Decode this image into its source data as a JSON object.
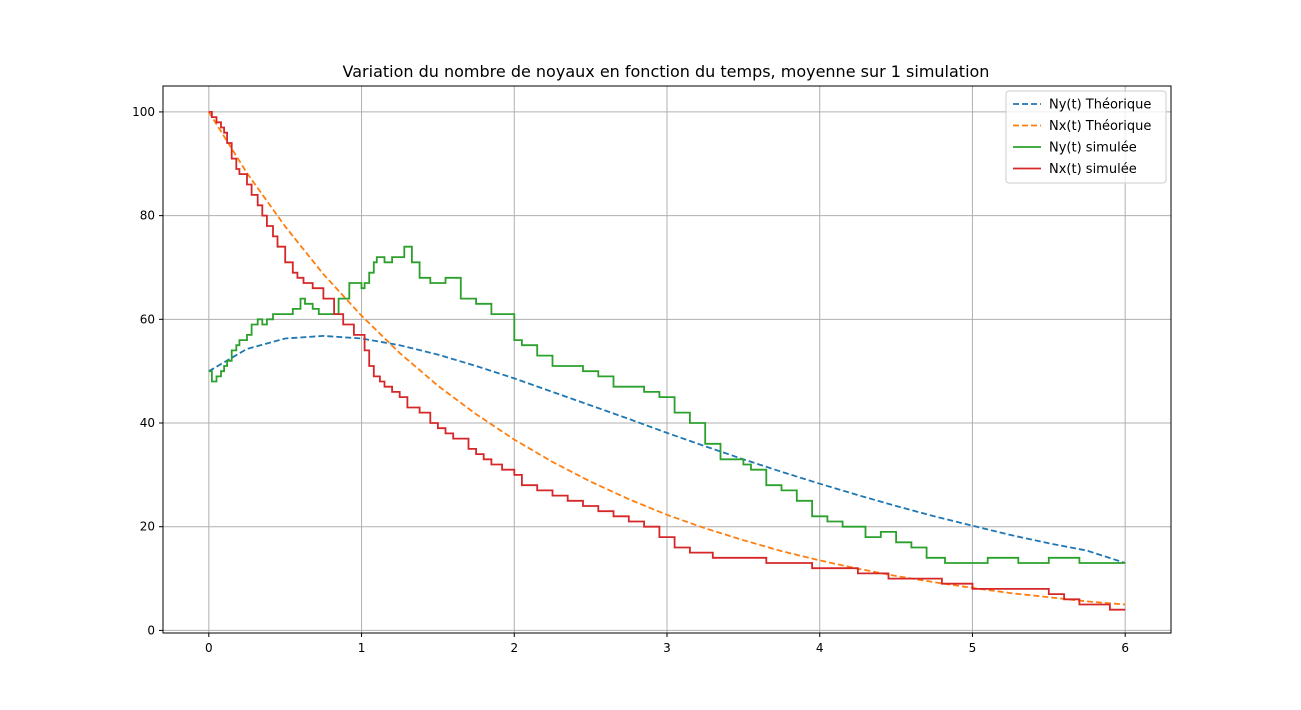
{
  "chart_data": {
    "type": "line",
    "title": "Variation du nombre de noyaux en fonction du temps, moyenne sur 1 simulation",
    "xlabel": "",
    "ylabel": "",
    "xlim": [
      -0.3,
      6.3
    ],
    "ylim": [
      -0.5,
      105
    ],
    "x_ticks": [
      "0",
      "1",
      "2",
      "3",
      "4",
      "5",
      "6"
    ],
    "y_ticks": [
      "0",
      "20",
      "40",
      "60",
      "80",
      "100"
    ],
    "grid": true,
    "legend_position": "top-right",
    "series": [
      {
        "name": "Ny(t) Théorique",
        "style": "dashed",
        "color": "#1f77b4",
        "x": [
          0,
          0.25,
          0.5,
          0.75,
          1.0,
          1.25,
          1.5,
          1.75,
          2.0,
          2.25,
          2.5,
          2.75,
          3.0,
          3.25,
          3.5,
          3.75,
          4.0,
          4.25,
          4.5,
          4.75,
          5.0,
          5.25,
          5.5,
          5.75,
          6.0
        ],
        "y": [
          50,
          54.3,
          56.3,
          56.8,
          56.3,
          55.0,
          53.2,
          51.0,
          48.6,
          46.0,
          43.4,
          40.8,
          38.1,
          35.5,
          33.0,
          30.6,
          28.3,
          26.1,
          24.0,
          22.0,
          20.2,
          18.4,
          16.8,
          15.4,
          13.0
        ]
      },
      {
        "name": "Nx(t) Théorique",
        "style": "dashed",
        "color": "#ff7f0e",
        "x": [
          0,
          0.25,
          0.5,
          0.75,
          1.0,
          1.25,
          1.5,
          1.75,
          2.0,
          2.25,
          2.5,
          2.75,
          3.0,
          3.25,
          3.5,
          3.75,
          4.0,
          4.25,
          4.5,
          4.75,
          5.0,
          5.25,
          5.5,
          5.75,
          6.0
        ],
        "y": [
          100,
          88.2,
          77.9,
          68.7,
          60.7,
          53.5,
          47.2,
          41.7,
          36.8,
          32.5,
          28.7,
          25.3,
          22.3,
          19.7,
          17.4,
          15.3,
          13.5,
          11.9,
          10.5,
          9.3,
          8.2,
          7.2,
          6.4,
          5.6,
          5.0
        ]
      },
      {
        "name": "Ny(t) simulée",
        "style": "step",
        "color": "#2ca02c",
        "x": [
          0,
          0.02,
          0.05,
          0.08,
          0.1,
          0.12,
          0.15,
          0.18,
          0.2,
          0.25,
          0.28,
          0.32,
          0.35,
          0.38,
          0.4,
          0.42,
          0.45,
          0.5,
          0.55,
          0.6,
          0.63,
          0.68,
          0.72,
          0.78,
          0.85,
          0.92,
          1.0,
          1.02,
          1.05,
          1.08,
          1.1,
          1.15,
          1.2,
          1.28,
          1.33,
          1.38,
          1.45,
          1.55,
          1.65,
          1.75,
          1.85,
          1.95,
          2.0,
          2.05,
          2.15,
          2.25,
          2.35,
          2.45,
          2.55,
          2.65,
          2.75,
          2.85,
          2.95,
          3.05,
          3.15,
          3.25,
          3.35,
          3.5,
          3.55,
          3.65,
          3.75,
          3.85,
          3.95,
          4.05,
          4.15,
          4.3,
          4.4,
          4.5,
          4.6,
          4.7,
          4.82,
          5.1,
          5.3,
          5.5,
          5.7,
          5.8,
          5.9,
          6.0
        ],
        "y": [
          50,
          48,
          49,
          50,
          51,
          52,
          54,
          55,
          56,
          57,
          59,
          60,
          59,
          60,
          60,
          61,
          61,
          61,
          62,
          64,
          63,
          62,
          61,
          61,
          64,
          67,
          66,
          67,
          69,
          71,
          72,
          71,
          72,
          74,
          71,
          68,
          67,
          68,
          64,
          63,
          61,
          61,
          56,
          55,
          53,
          51,
          51,
          50,
          49,
          47,
          47,
          46,
          45,
          42,
          40,
          36,
          33,
          32,
          31,
          28,
          27,
          25,
          22,
          21,
          20,
          18,
          19,
          17,
          16,
          14,
          13,
          14,
          13,
          14,
          13,
          13,
          13,
          13
        ]
      },
      {
        "name": "Nx(t) simulée",
        "style": "step",
        "color": "#d62728",
        "x": [
          0,
          0.02,
          0.05,
          0.08,
          0.1,
          0.12,
          0.15,
          0.18,
          0.2,
          0.25,
          0.28,
          0.32,
          0.35,
          0.38,
          0.42,
          0.45,
          0.5,
          0.55,
          0.58,
          0.62,
          0.68,
          0.75,
          0.82,
          0.88,
          0.95,
          1.02,
          1.05,
          1.08,
          1.12,
          1.15,
          1.2,
          1.25,
          1.3,
          1.38,
          1.45,
          1.5,
          1.55,
          1.6,
          1.7,
          1.75,
          1.8,
          1.85,
          1.92,
          2.0,
          2.05,
          2.15,
          2.25,
          2.35,
          2.45,
          2.55,
          2.65,
          2.75,
          2.85,
          2.95,
          3.05,
          3.15,
          3.3,
          3.5,
          3.65,
          3.8,
          3.95,
          4.1,
          4.25,
          4.45,
          4.6,
          4.8,
          5.0,
          5.25,
          5.5,
          5.6,
          5.7,
          5.8,
          5.9,
          6.0
        ],
        "y": [
          100,
          99,
          98,
          97,
          96,
          94,
          91,
          89,
          88,
          86,
          84,
          82,
          80,
          78,
          76,
          74,
          71,
          69,
          68,
          67,
          66,
          64,
          61,
          59,
          57,
          54,
          51,
          49,
          48,
          47,
          46,
          45,
          43,
          42,
          40,
          39,
          38,
          37,
          35,
          34,
          33,
          32,
          31,
          30,
          28,
          27,
          26,
          25,
          24,
          23,
          22,
          21,
          20,
          18,
          16,
          15,
          14,
          14,
          13,
          13,
          12,
          12,
          11,
          10,
          10,
          9,
          8,
          8,
          7,
          6,
          5,
          5,
          4,
          4
        ]
      }
    ]
  }
}
